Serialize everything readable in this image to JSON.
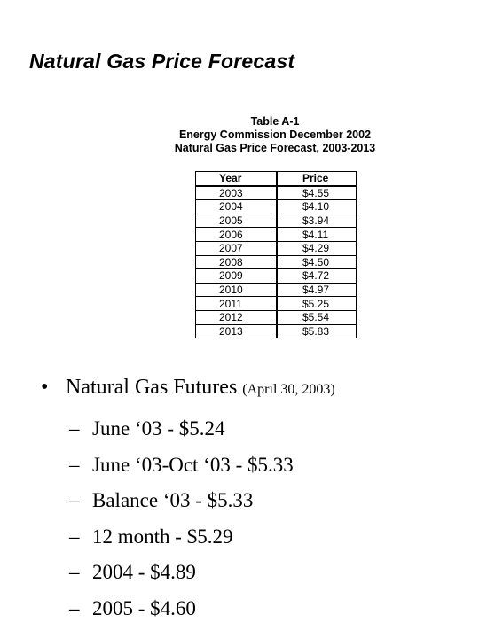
{
  "slide": {
    "title": "Natural Gas Price Forecast"
  },
  "table": {
    "caption_line1": "Table A-1",
    "caption_line2": "Energy Commission December 2002",
    "caption_line3": "Natural Gas Price Forecast, 2003-2013",
    "headers": {
      "year": "Year",
      "price": "Price"
    },
    "rows": [
      {
        "year": "2003",
        "price": "$4.55"
      },
      {
        "year": "2004",
        "price": "$4.10"
      },
      {
        "year": "2005",
        "price": "$3.94"
      },
      {
        "year": "2006",
        "price": "$4.11"
      },
      {
        "year": "2007",
        "price": "$4.29"
      },
      {
        "year": "2008",
        "price": "$4.50"
      },
      {
        "year": "2009",
        "price": "$4.72"
      },
      {
        "year": "2010",
        "price": "$4.97"
      },
      {
        "year": "2011",
        "price": "$5.25"
      },
      {
        "year": "2012",
        "price": "$5.54"
      },
      {
        "year": "2013",
        "price": "$5.83"
      }
    ]
  },
  "bullets": {
    "bullet_char": "•",
    "main_text": "Natural Gas Futures",
    "main_note": "(April 30, 2003)",
    "dash_char": "–",
    "sub_items": [
      "June ‘03 - $5.24",
      "June ‘03-Oct ‘03 - $5.33",
      "Balance ‘03 - $5.33",
      "12 month - $5.29",
      "2004 - $4.89",
      "2005 - $4.60"
    ]
  }
}
